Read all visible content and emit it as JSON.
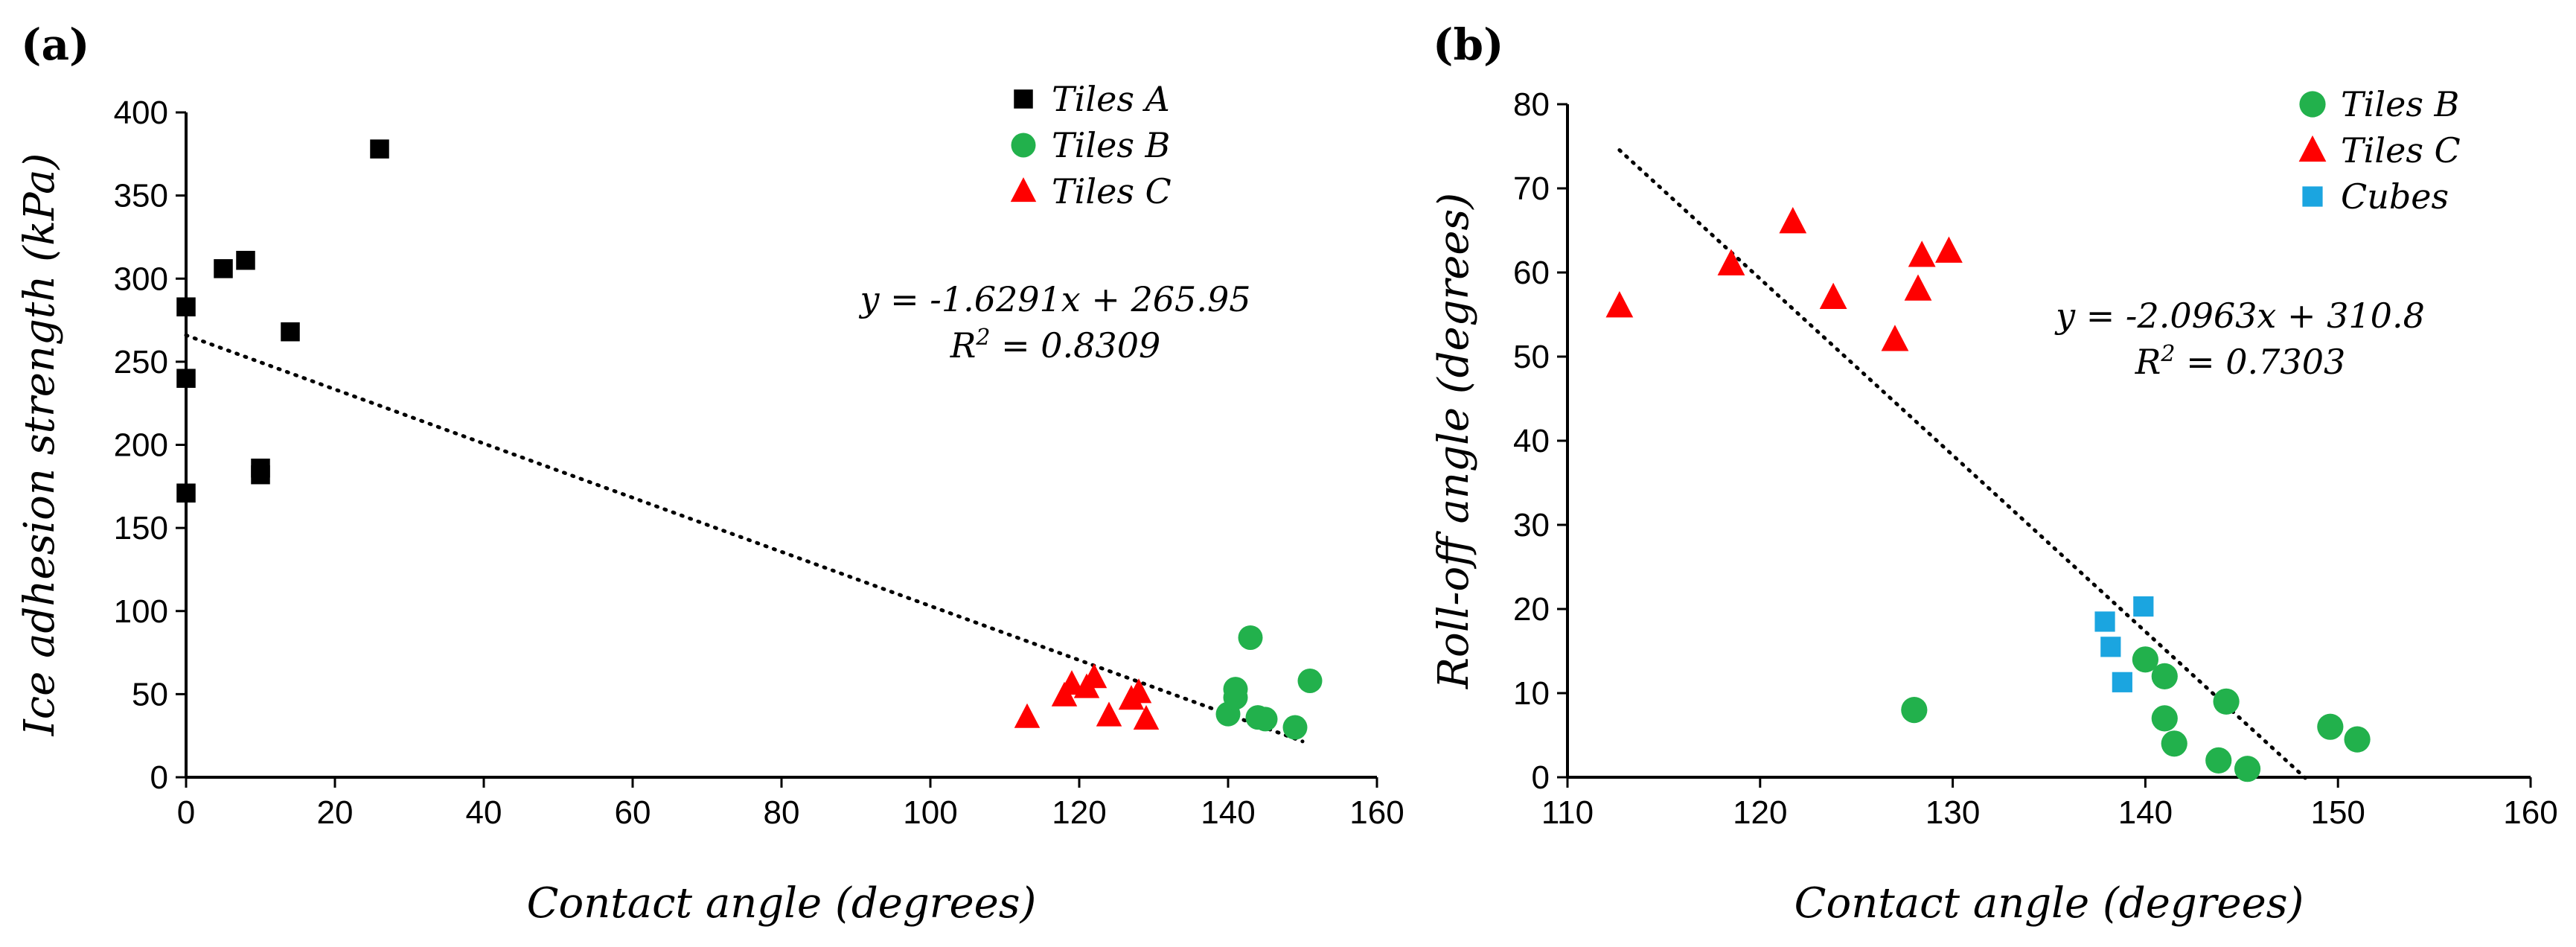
{
  "chart_data": [
    {
      "panel": "(a)",
      "type": "scatter",
      "xlabel": "Contact angle (degrees)",
      "ylabel": "Ice adhesion strength (kPa)",
      "xlim": [
        0,
        160
      ],
      "ylim": [
        0,
        400
      ],
      "xticks": [
        0,
        20,
        40,
        60,
        80,
        100,
        120,
        140,
        160
      ],
      "yticks": [
        0,
        50,
        100,
        150,
        200,
        250,
        300,
        350,
        400
      ],
      "series": [
        {
          "name": "Tiles A",
          "marker": "square",
          "color": "#000000",
          "points": [
            [
              0,
              283
            ],
            [
              0,
              240
            ],
            [
              0,
              171
            ],
            [
              5,
              306
            ],
            [
              8,
              311
            ],
            [
              10,
              186
            ],
            [
              10,
              182
            ],
            [
              14,
              268
            ],
            [
              26,
              378
            ]
          ]
        },
        {
          "name": "Tiles B",
          "marker": "circle",
          "color": "#22b14c",
          "points": [
            [
              140,
              38
            ],
            [
              141,
              48
            ],
            [
              141,
              53
            ],
            [
              143,
              84
            ],
            [
              144,
              36
            ],
            [
              145,
              35
            ],
            [
              149,
              30
            ],
            [
              151,
              58
            ]
          ]
        },
        {
          "name": "Tiles C",
          "marker": "triangle",
          "color": "#ff0000",
          "points": [
            [
              113,
              36
            ],
            [
              118,
              49
            ],
            [
              119,
              56
            ],
            [
              121,
              54
            ],
            [
              122,
              60
            ],
            [
              124,
              37
            ],
            [
              127,
              47
            ],
            [
              128,
              51
            ],
            [
              129,
              35
            ]
          ]
        }
      ],
      "trendline": {
        "slope": -1.6291,
        "intercept": 265.95,
        "x_range": [
          0,
          150
        ]
      },
      "equation": "y = -1.6291x + 265.95",
      "r2_prefix": "R",
      "r2_sup": "2",
      "r2_value": " = 0.8309",
      "legend_position": "top-right"
    },
    {
      "panel": "(b)",
      "type": "scatter",
      "xlabel": "Contact angle (degrees)",
      "ylabel": "Roll-off angle (degrees)",
      "xlim": [
        110,
        160
      ],
      "ylim": [
        0,
        80
      ],
      "xticks": [
        110,
        120,
        130,
        140,
        150,
        160
      ],
      "yticks": [
        0,
        10,
        20,
        30,
        40,
        50,
        60,
        70,
        80
      ],
      "series": [
        {
          "name": "Tiles B",
          "marker": "circle",
          "color": "#22b14c",
          "points": [
            [
              128,
              8
            ],
            [
              140,
              14
            ],
            [
              141,
              7
            ],
            [
              141,
              12
            ],
            [
              141.5,
              4
            ],
            [
              143.8,
              2
            ],
            [
              144.2,
              9
            ],
            [
              145.3,
              1
            ],
            [
              149.6,
              6
            ],
            [
              151,
              4.5
            ]
          ]
        },
        {
          "name": "Tiles C",
          "marker": "triangle",
          "color": "#ff0000",
          "points": [
            [
              112.7,
              56
            ],
            [
              118.5,
              61
            ],
            [
              121.7,
              66
            ],
            [
              123.8,
              57
            ],
            [
              127,
              52
            ],
            [
              128.2,
              58
            ],
            [
              128.4,
              62
            ],
            [
              129.8,
              62.5
            ]
          ]
        },
        {
          "name": "Cubes",
          "marker": "square",
          "color": "#1ba5e0",
          "points": [
            [
              137.9,
              18.5
            ],
            [
              138.2,
              15.5
            ],
            [
              138.8,
              11.3
            ],
            [
              139.9,
              20.3
            ]
          ]
        }
      ],
      "trendline": {
        "slope": -2.0963,
        "intercept": 310.8,
        "x_range": [
          112.7,
          148.3
        ]
      },
      "equation": "y = -2.0963x + 310.8",
      "r2_prefix": "R",
      "r2_sup": "2",
      "r2_value": " = 0.7303",
      "legend_position": "top-right"
    }
  ]
}
